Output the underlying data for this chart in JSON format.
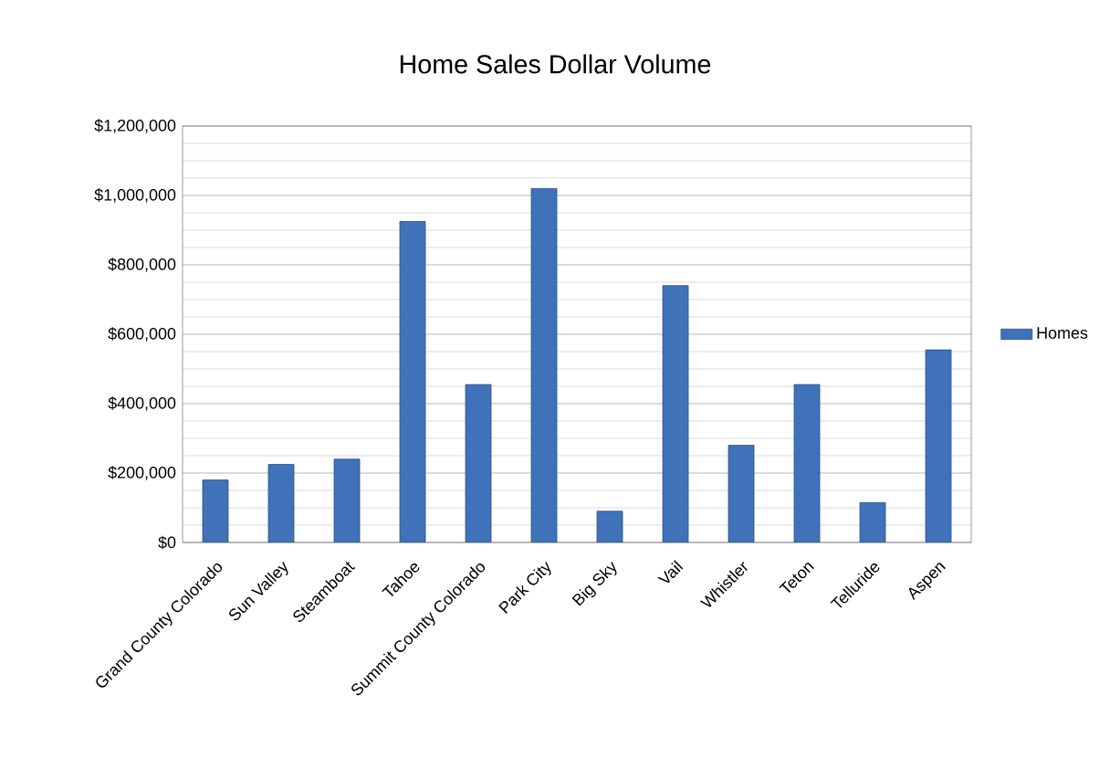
{
  "chart_data": {
    "type": "bar",
    "title": "Home Sales Dollar Volume",
    "categories": [
      "Grand County Colorado",
      "Sun Valley",
      "Steamboat",
      "Tahoe",
      "Summit County Colorado",
      "Park City",
      "Big Sky",
      "Vail",
      "Whistler",
      "Teton",
      "Telluride",
      "Aspen"
    ],
    "series": [
      {
        "name": "Homes",
        "color": "#3f72b8",
        "values": [
          180000,
          225000,
          240000,
          925000,
          455000,
          1020000,
          90000,
          740000,
          280000,
          455000,
          115000,
          555000
        ]
      }
    ],
    "ylim": [
      0,
      1200000
    ],
    "yticks": [
      {
        "value": 0,
        "label": "$0"
      },
      {
        "value": 200000,
        "label": "$200,000"
      },
      {
        "value": 400000,
        "label": "$400,000"
      },
      {
        "value": 600000,
        "label": "$600,000"
      },
      {
        "value": 800000,
        "label": "$800,000"
      },
      {
        "value": 1000000,
        "label": "$1,000,000"
      },
      {
        "value": 1200000,
        "label": "$1,200,000"
      }
    ],
    "grid": true,
    "legend": "right"
  }
}
